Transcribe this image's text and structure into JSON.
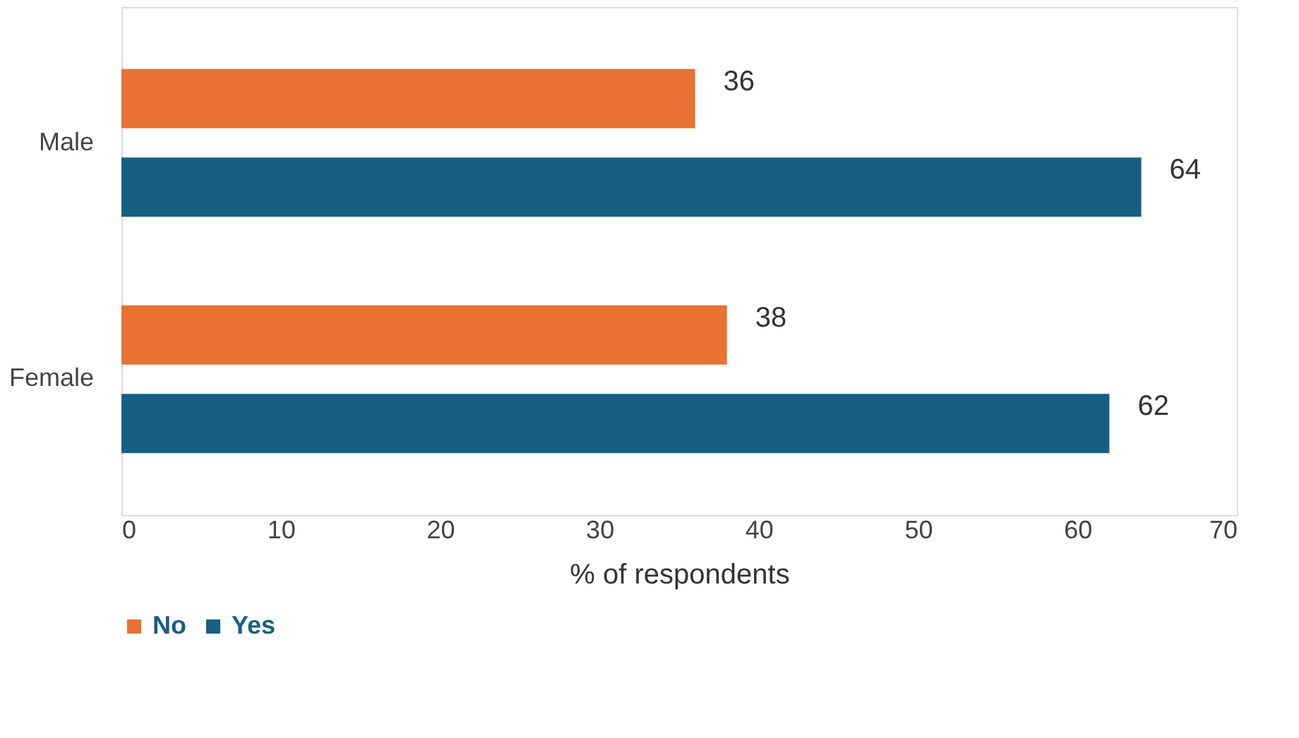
{
  "chart_data": {
    "type": "bar",
    "orientation": "horizontal",
    "categories": [
      "Male",
      "Female"
    ],
    "series": [
      {
        "name": "No",
        "color": "#e87133",
        "values": [
          36,
          38
        ]
      },
      {
        "name": "Yes",
        "color": "#175f82",
        "values": [
          64,
          62
        ]
      }
    ],
    "xlabel": "% of respondents",
    "xlim": [
      0,
      70
    ],
    "xticks": [
      0,
      10,
      20,
      30,
      40,
      50,
      60,
      70
    ],
    "grid": false,
    "legend": "bottom",
    "data_labels": true
  }
}
